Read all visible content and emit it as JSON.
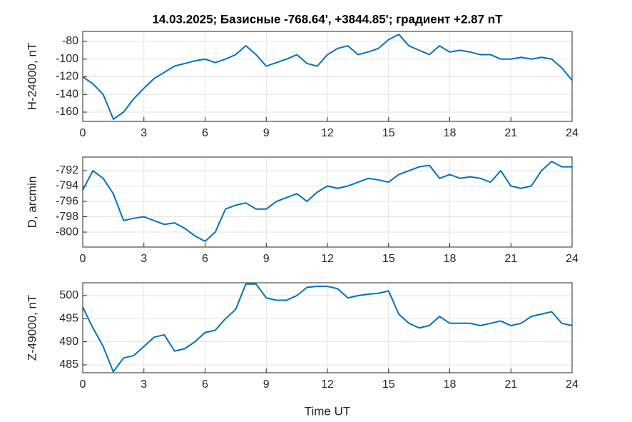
{
  "chart_data": [
    {
      "type": "line",
      "title": "14.03.2025;  Базисные  -768.64', +3844.85'; градиент +2.87 nT",
      "ylabel": "H-24000, nT",
      "x": [
        0,
        0.5,
        1,
        1.5,
        2,
        2.5,
        3,
        3.5,
        4,
        4.5,
        5,
        5.5,
        6,
        6.5,
        7,
        7.5,
        8,
        8.5,
        9,
        9.5,
        10,
        10.5,
        11,
        11.5,
        12,
        12.5,
        13,
        13.5,
        14,
        14.5,
        15,
        15.5,
        16,
        16.5,
        17,
        17.5,
        18,
        18.5,
        19,
        19.5,
        20,
        20.5,
        21,
        21.5,
        22,
        22.5,
        23,
        23.5,
        24
      ],
      "values": [
        -120,
        -128,
        -140,
        -168,
        -160,
        -145,
        -133,
        -122,
        -115,
        -108,
        -105,
        -102,
        -100,
        -104,
        -100,
        -95,
        -85,
        -95,
        -108,
        -104,
        -100,
        -95,
        -105,
        -108,
        -95,
        -88,
        -85,
        -95,
        -92,
        -88,
        -78,
        -72,
        -85,
        -90,
        -95,
        -85,
        -92,
        -90,
        -92,
        -95,
        -95,
        -100,
        -100,
        -98,
        -100,
        -98,
        -100,
        -110,
        -124
      ],
      "color": "#0072bd",
      "xlim": [
        0,
        24
      ],
      "xticks": [
        0,
        3,
        6,
        9,
        12,
        15,
        18,
        21,
        24
      ],
      "ylim": [
        -170.5,
        -68.7
      ],
      "yticks": [
        -160,
        -140,
        -120,
        -100,
        -80
      ],
      "grid": true
    },
    {
      "type": "line",
      "ylabel": "D, arcmin",
      "x": [
        0,
        0.5,
        1,
        1.5,
        2,
        2.5,
        3,
        3.5,
        4,
        4.5,
        5,
        5.5,
        6,
        6.5,
        7,
        7.5,
        8,
        8.5,
        9,
        9.5,
        10,
        10.5,
        11,
        11.5,
        12,
        12.5,
        13,
        13.5,
        14,
        14.5,
        15,
        15.5,
        16,
        16.5,
        17,
        17.5,
        18,
        18.5,
        19,
        19.5,
        20,
        20.5,
        21,
        21.5,
        22,
        22.5,
        23,
        23.5,
        24
      ],
      "values": [
        -794.5,
        -792,
        -793,
        -795,
        -798.5,
        -798.2,
        -798,
        -798.5,
        -799,
        -798.8,
        -799.5,
        -800.5,
        -801.2,
        -800,
        -797,
        -796.5,
        -796.2,
        -797,
        -797,
        -796,
        -795.5,
        -795,
        -796,
        -794.8,
        -794,
        -794.3,
        -794,
        -793.5,
        -793,
        -793.2,
        -793.5,
        -792.5,
        -792,
        -791.5,
        -791.3,
        -793,
        -792.5,
        -793,
        -792.8,
        -793,
        -793.5,
        -792,
        -794,
        -794.3,
        -794,
        -792,
        -790.8,
        -791.5,
        -791.5
      ],
      "color": "#0072bd",
      "xlim": [
        0,
        24
      ],
      "xticks": [
        0,
        3,
        6,
        9,
        12,
        15,
        18,
        21,
        24
      ],
      "ylim": [
        -801.95,
        -790.23
      ],
      "yticks": [
        -800,
        -798,
        -796,
        -794,
        -792
      ],
      "grid": true
    },
    {
      "type": "line",
      "ylabel": "Z-49000, nT",
      "xlabel": "Time UT",
      "x": [
        0,
        0.5,
        1,
        1.5,
        2,
        2.5,
        3,
        3.5,
        4,
        4.5,
        5,
        5.5,
        6,
        6.5,
        7,
        7.5,
        8,
        8.5,
        9,
        9.5,
        10,
        10.5,
        11,
        11.5,
        12,
        12.5,
        13,
        13.5,
        14,
        14.5,
        15,
        15.5,
        16,
        16.5,
        17,
        17.5,
        18,
        18.5,
        19,
        19.5,
        20,
        20.5,
        21,
        21.5,
        22,
        22.5,
        23,
        23.5,
        24
      ],
      "values": [
        497.5,
        493,
        489,
        483.5,
        486.5,
        487,
        489,
        491,
        491.5,
        488,
        488.5,
        490,
        492,
        492.5,
        495,
        497,
        502.5,
        502.5,
        499.5,
        499,
        499,
        500,
        501.8,
        502,
        502,
        501.5,
        499.5,
        500,
        500.3,
        500.5,
        501,
        496,
        494,
        493,
        493.5,
        495.5,
        494,
        494,
        494,
        493.5,
        494,
        494.5,
        493.5,
        494,
        495.5,
        496,
        496.5,
        494,
        493.5
      ],
      "color": "#0072bd",
      "xlim": [
        0,
        24
      ],
      "xticks": [
        0,
        3,
        6,
        9,
        12,
        15,
        18,
        21,
        24
      ],
      "ylim": [
        483.3,
        502.78
      ],
      "yticks": [
        485,
        490,
        495,
        500
      ],
      "grid": true
    }
  ]
}
